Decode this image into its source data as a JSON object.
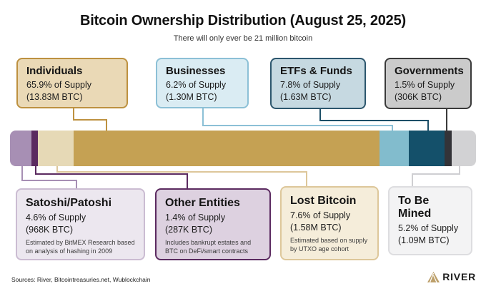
{
  "page": {
    "title": "Bitcoin Ownership Distribution (August 25, 2025)",
    "subtitle": "There will only ever be 21 million bitcoin",
    "sources": "Sources: River, Bitcointreasuries.net, Wublockchain",
    "brand": "RIVER",
    "brand_color": "#bda06b"
  },
  "chart_data": {
    "type": "bar",
    "variant": "horizontal-stacked-100-percent",
    "title": "Bitcoin Ownership Distribution (August 25, 2025)",
    "subtitle": "There will only ever be 21 million bitcoin",
    "total_supply": "21 million bitcoin",
    "unit": "% of supply",
    "legend_position": "callout-boxes-above-and-below-bar",
    "segments": [
      {
        "id": "satoshi",
        "label": "Satoshi/Patoshi",
        "percent": 4.6,
        "btc": "968K",
        "supply_text": "4.6% of Supply",
        "btc_text": "(968K BTC)",
        "note": "Estimated by BitMEX Research based on analysis of hashing in 2009",
        "bar_color": "#a78fb4",
        "box_bg": "#ece7ef",
        "box_border": "#cbbcd2",
        "connector_color": "#a78fb4",
        "callout_row": "bottom"
      },
      {
        "id": "other-entities",
        "label": "Other Entities",
        "percent": 1.4,
        "btc": "287K",
        "supply_text": "1.4% of Supply",
        "btc_text": "(287K BTC)",
        "note": "Includes bankrupt estates and BTC on DeFi/smart contracts",
        "bar_color": "#5b2a60",
        "box_bg": "#ddd1e0",
        "box_border": "#5b2a60",
        "connector_color": "#5b2a60",
        "callout_row": "bottom"
      },
      {
        "id": "lost-bitcoin",
        "label": "Lost Bitcoin",
        "percent": 7.6,
        "btc": "1.58M",
        "supply_text": "7.6% of Supply",
        "btc_text": "(1.58M BTC)",
        "note": "Estimated based on supply by UTXO age cohort",
        "bar_color": "#e6d9b6",
        "box_bg": "#f5edda",
        "box_border": "#ddc79a",
        "connector_color": "#ddc79a",
        "callout_row": "bottom"
      },
      {
        "id": "individuals",
        "label": "Individuals",
        "percent": 65.9,
        "btc": "13.83M",
        "supply_text": "65.9% of Supply",
        "btc_text": "(13.83M BTC)",
        "bar_color": "#c5a153",
        "box_bg": "#ead9b6",
        "box_border": "#bd9140",
        "connector_color": "#bd9140",
        "callout_row": "top"
      },
      {
        "id": "businesses",
        "label": "Businesses",
        "percent": 6.2,
        "btc": "1.30M",
        "supply_text": "6.2% of Supply",
        "btc_text": "(1.30M BTC)",
        "bar_color": "#82bccd",
        "box_bg": "#daecf3",
        "box_border": "#8cc0d6",
        "connector_color": "#8cc0d6",
        "callout_row": "top"
      },
      {
        "id": "etfs-funds",
        "label": "ETFs & Funds",
        "percent": 7.8,
        "btc": "1.63M",
        "supply_text": "7.8% of Supply",
        "btc_text": "(1.63M BTC)",
        "bar_color": "#14506a",
        "box_bg": "#c6d9e1",
        "box_border": "#2c566d",
        "connector_color": "#1d4f68",
        "callout_row": "top"
      },
      {
        "id": "governments",
        "label": "Governments",
        "percent": 1.5,
        "btc": "306K",
        "supply_text": "1.5% of Supply",
        "btc_text": "(306K BTC)",
        "bar_color": "#333338",
        "box_bg": "#cbcbcb",
        "box_border": "#3a3a3a",
        "connector_color": "#3a3a3a",
        "callout_row": "top"
      },
      {
        "id": "to-be-mined",
        "label": "To Be Mined",
        "percent": 5.2,
        "btc": "1.09M",
        "supply_text": "5.2% of Supply",
        "btc_text": "(1.09M BTC)",
        "bar_color": "#d2d2d4",
        "box_bg": "#f3f3f4",
        "box_border": "#dddde0",
        "connector_color": "#cfcfd2",
        "callout_row": "bottom"
      }
    ]
  }
}
